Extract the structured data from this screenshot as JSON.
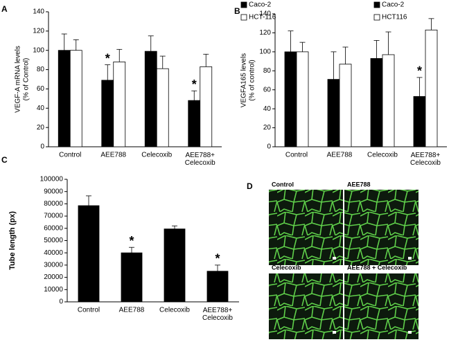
{
  "chart_data": [
    {
      "type": "bar",
      "panel_label": "A",
      "y_label": [
        "VEGF-A mRNA levels",
        "(% of Control)"
      ],
      "categories": [
        "Control",
        "AEE788",
        "Celecoxib",
        "AEE788+\nCelecoxib"
      ],
      "series": [
        {
          "name": "Caco-2",
          "color": "#000000",
          "values": [
            100,
            69,
            99,
            48
          ],
          "errors": [
            17,
            16,
            16,
            10
          ],
          "annotations": [
            null,
            "*",
            null,
            "*"
          ]
        },
        {
          "name": "HCT-116",
          "color": "#ffffff",
          "values": [
            100,
            88,
            81,
            83
          ],
          "errors": [
            11,
            13,
            13,
            13
          ]
        }
      ],
      "ylim": [
        0,
        140
      ],
      "yticks": [
        0,
        20,
        40,
        60,
        80,
        100,
        120,
        140
      ],
      "legend": "upper right"
    },
    {
      "type": "bar",
      "panel_label": "B",
      "y_label": [
        "VEGFA165 levels",
        "(% of control)"
      ],
      "categories": [
        "Control",
        "AEE788",
        "Celecoxib",
        "AEE788+\nCelecoxib"
      ],
      "series": [
        {
          "name": "Caco-2",
          "color": "#000000",
          "values": [
            100,
            71,
            93,
            53
          ],
          "errors": [
            22,
            29,
            19,
            20
          ],
          "annotations": [
            null,
            null,
            null,
            "*"
          ]
        },
        {
          "name": "HCT116",
          "color": "#ffffff",
          "values": [
            100,
            87,
            97,
            123
          ],
          "errors": [
            10,
            18,
            24,
            12
          ]
        }
      ],
      "ylim": [
        0,
        140
      ],
      "yticks": [
        0,
        20,
        40,
        60,
        80,
        100,
        120,
        140
      ],
      "legend": "upper right"
    },
    {
      "type": "bar",
      "panel_label": "C",
      "y_label": [
        "Tube length (px)"
      ],
      "categories": [
        "Control",
        "AEE788",
        "Celecoxib",
        "AEE788+\nCelecoxib"
      ],
      "series": [
        {
          "color": "#000000",
          "values": [
            78500,
            40000,
            59500,
            25000
          ],
          "errors": [
            8000,
            4500,
            2500,
            5000
          ],
          "annotations": [
            null,
            "*",
            null,
            "*"
          ]
        }
      ],
      "ylim": [
        0,
        100000
      ],
      "yticks": [
        0,
        10000,
        20000,
        30000,
        40000,
        50000,
        60000,
        70000,
        80000,
        90000,
        100000
      ]
    }
  ],
  "panel_d": {
    "label": "D",
    "images": [
      {
        "label": "Control"
      },
      {
        "label": "AEE788"
      },
      {
        "label": "Celecoxib"
      },
      {
        "label": "AEE788 + Celecoxib"
      }
    ]
  }
}
